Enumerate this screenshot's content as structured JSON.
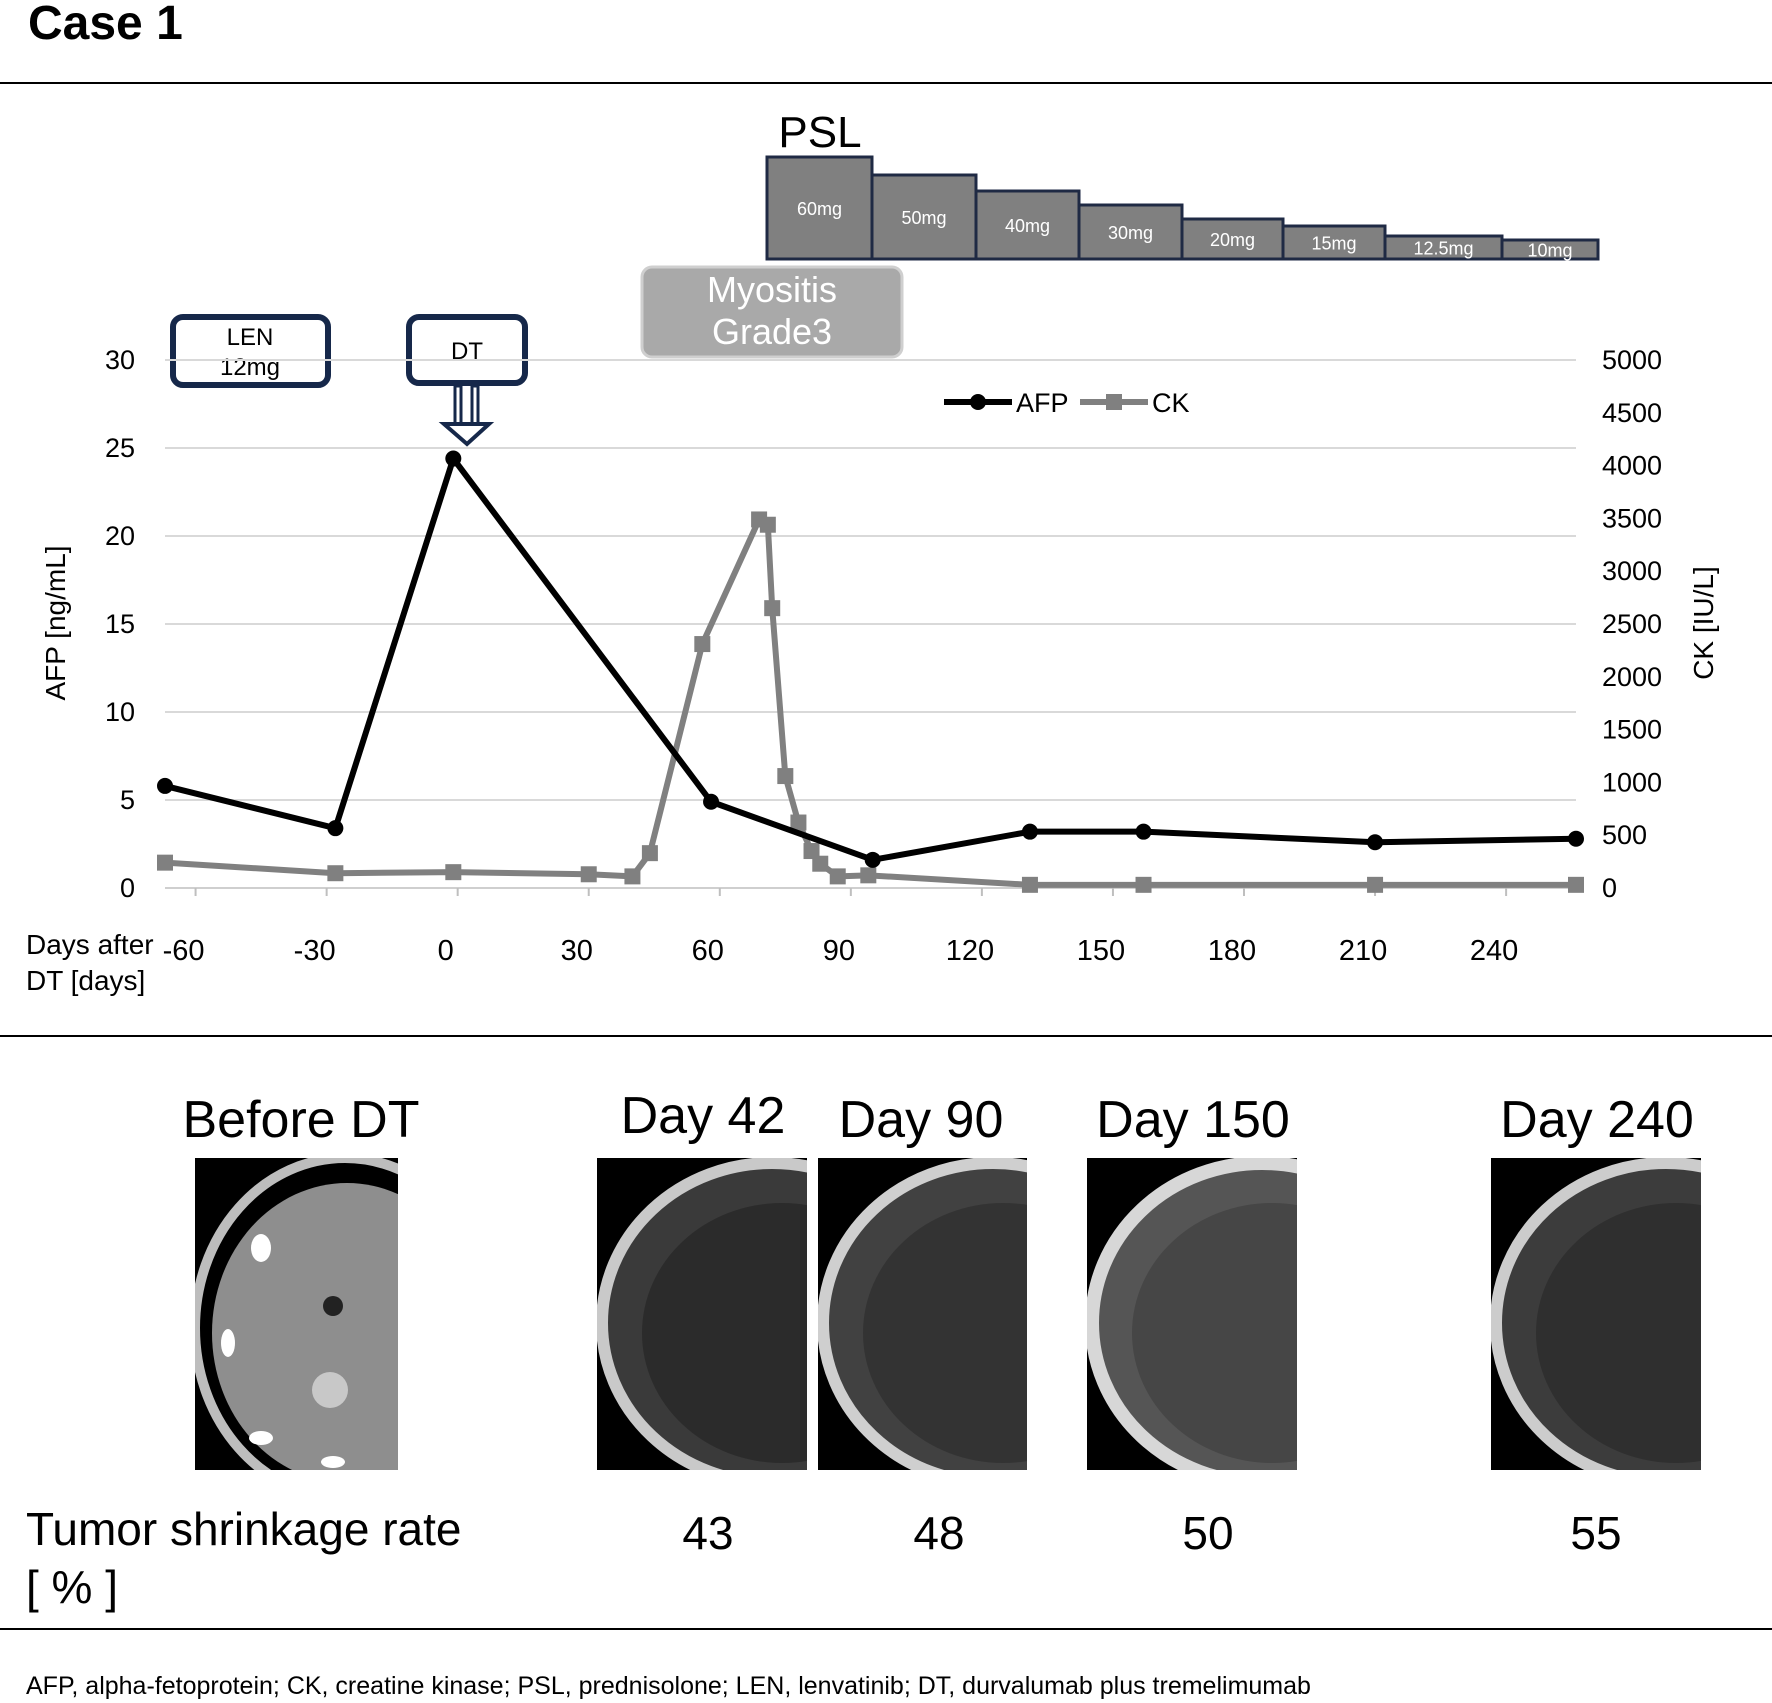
{
  "title": "Case 1",
  "psl": {
    "label": "PSL",
    "doses": [
      "60mg",
      "50mg",
      "40mg",
      "30mg",
      "20mg",
      "15mg",
      "12.5mg",
      "10mg"
    ]
  },
  "annotations": {
    "len": "LEN\n12mg",
    "dt": "DT",
    "myositis": "Myositis\nGrade3"
  },
  "chart_data": {
    "type": "line",
    "xlabel": "Days after\nDT [days]",
    "ylabel_left": "AFP  [ng/mL]",
    "ylabel_right": "CK [IU/L]",
    "x_ticks": [
      -60,
      -30,
      0,
      30,
      60,
      90,
      120,
      150,
      180,
      210,
      240
    ],
    "x_tick_labels": [
      "-60",
      "-30",
      "0",
      "30",
      "60",
      "90",
      "120",
      "150",
      "180",
      "210",
      "240"
    ],
    "xlim": [
      -67,
      256
    ],
    "y_left_ticks": [
      0,
      5,
      10,
      15,
      20,
      25,
      30
    ],
    "ylim_left": [
      0,
      30
    ],
    "y_right_ticks": [
      0,
      500,
      1000,
      1500,
      2000,
      2500,
      3000,
      3500,
      4000,
      4500,
      5000
    ],
    "ylim_right": [
      0,
      5000
    ],
    "grid": true,
    "legend": "top-center",
    "series": [
      {
        "name": "AFP",
        "axis": "left",
        "color": "#000000",
        "marker": "circle",
        "x": [
          -67,
          -28,
          -1,
          58,
          95,
          131,
          157,
          210,
          256
        ],
        "y": [
          5.8,
          3.4,
          24.4,
          4.9,
          1.6,
          3.2,
          3.2,
          2.6,
          2.8
        ]
      },
      {
        "name": "CK",
        "axis": "right",
        "color": "#808080",
        "marker": "square",
        "x": [
          -67,
          -28,
          -1,
          30,
          40,
          44,
          56,
          69,
          71,
          72,
          75,
          78,
          81,
          83,
          87,
          94,
          131,
          157,
          210,
          256
        ],
        "y": [
          240,
          140,
          150,
          130,
          110,
          330,
          2310,
          3490,
          3440,
          2650,
          1060,
          620,
          350,
          230,
          110,
          120,
          30,
          30,
          30,
          30
        ]
      }
    ]
  },
  "images": {
    "labels": [
      "Before DT",
      "Day 42",
      "Day 90",
      "Day 150",
      "Day 240"
    ]
  },
  "shrinkage": {
    "label": "Tumor shrinkage rate\n[ % ]",
    "values": [
      "43",
      "48",
      "50",
      "55"
    ]
  },
  "footnote": "AFP, alpha-fetoprotein; CK, creatine kinase; PSL, prednisolone; LEN, lenvatinib; DT, durvalumab plus tremelimumab",
  "colors": {
    "psl_fill": "#808080",
    "psl_border": "#1f2a44",
    "box_border": "#16284a",
    "myositis_fill": "#a9a9a9",
    "grid": "#d9d9d9"
  }
}
